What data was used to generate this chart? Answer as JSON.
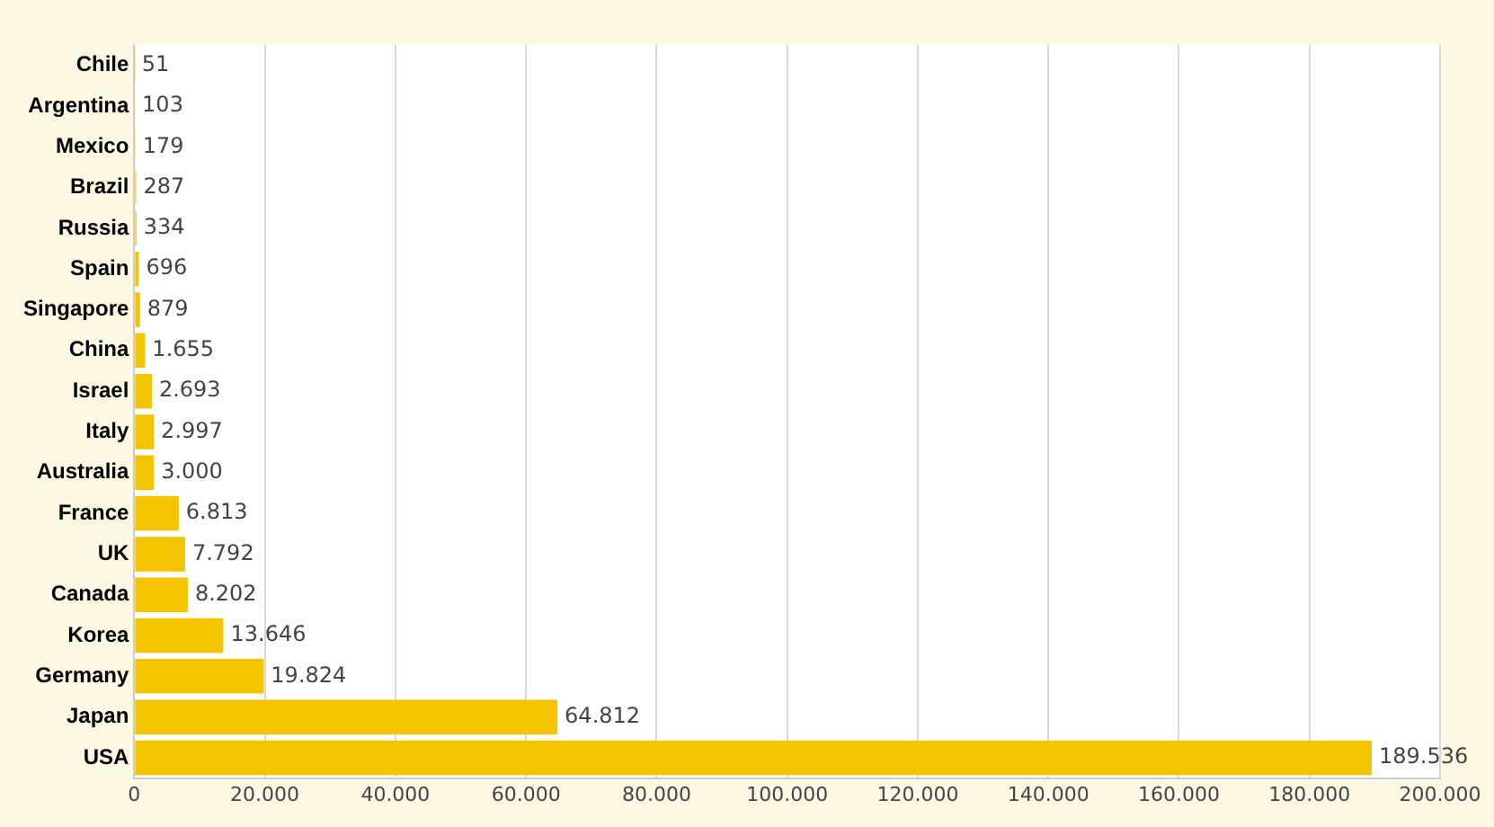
{
  "chart_data": {
    "type": "bar",
    "orientation": "horizontal",
    "categories": [
      "Chile",
      "Argentina",
      "Mexico",
      "Brazil",
      "Russia",
      "Spain",
      "Singapore",
      "China",
      "Israel",
      "Italy",
      "Australia",
      "France",
      "UK",
      "Canada",
      "Korea",
      "Germany",
      "Japan",
      "USA"
    ],
    "values": [
      51,
      103,
      179,
      287,
      334,
      696,
      879,
      1655,
      2693,
      2997,
      3000,
      6813,
      7792,
      8202,
      13646,
      19824,
      64812,
      189536
    ],
    "value_labels": [
      "51",
      "103",
      "179",
      "287",
      "334",
      "696",
      "879",
      "1.655",
      "2.693",
      "2.997",
      "3.000",
      "6.813",
      "7.792",
      "8.202",
      "13.646",
      "19.824",
      "64.812",
      "189.536"
    ],
    "color": "#f5c400",
    "xlim": [
      0,
      200000
    ],
    "xticks": [
      0,
      {
        "value": 20000,
        "label": "20.000"
      },
      {
        "value": 40000,
        "label": "40.000"
      },
      {
        "value": 60000,
        "label": "60.000"
      },
      {
        "value": 80000,
        "label": "80.000"
      },
      {
        "value": 100000,
        "label": "100.000"
      },
      {
        "value": 120000,
        "label": "120.000"
      },
      {
        "value": 140000,
        "label": "140.000"
      },
      {
        "value": 160000,
        "label": "160.000"
      },
      {
        "value": 180000,
        "label": "180.000"
      },
      {
        "value": 200000,
        "label": "200.000"
      }
    ],
    "grid": "x",
    "legend": false
  }
}
